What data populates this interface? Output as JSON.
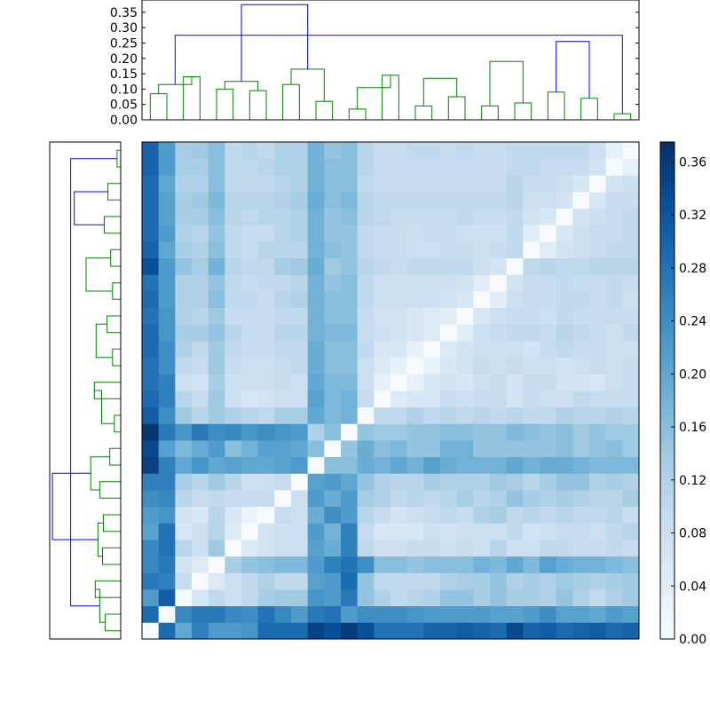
{
  "chart_data": [
    {
      "type": "dendrogram",
      "orientation": "top",
      "title": "",
      "ylabel": "",
      "ylim": [
        0,
        0.39
      ],
      "yticks": [
        0.0,
        0.05,
        0.1,
        0.15,
        0.2,
        0.25,
        0.3,
        0.35
      ],
      "ytick_labels": [
        "0.00",
        "0.05",
        "0.10",
        "0.15",
        "0.20",
        "0.25",
        "0.30",
        "0.35"
      ],
      "leaf_count": 30,
      "colors": {
        "above_threshold": "#0000ff",
        "clusters": "#008000"
      },
      "merges": [
        {
          "left": [
            1
          ],
          "right": [
            2
          ],
          "height": 0.085
        },
        {
          "left": [
            3
          ],
          "right": [
            4
          ],
          "height": 0.14
        },
        {
          "left": [
            5
          ],
          "right": [
            6
          ],
          "height": 0.1
        },
        {
          "left": [
            7
          ],
          "right": [
            8
          ],
          "height": 0.095
        },
        {
          "left": [
            9
          ],
          "right": [
            10
          ],
          "height": 0.115
        },
        {
          "left": [
            11
          ],
          "right": [
            12
          ],
          "height": 0.06
        },
        {
          "left": [
            13
          ],
          "right": [
            14
          ],
          "height": 0.035
        },
        {
          "left": [
            15
          ],
          "right": [
            16
          ],
          "height": 0.145
        },
        {
          "left": [
            17
          ],
          "right": [
            18
          ],
          "height": 0.045
        },
        {
          "left": [
            19
          ],
          "right": [
            20
          ],
          "height": 0.075
        },
        {
          "left": [
            21
          ],
          "right": [
            22
          ],
          "height": 0.045
        },
        {
          "left": [
            23
          ],
          "right": [
            24
          ],
          "height": 0.055
        },
        {
          "left": [
            25
          ],
          "right": [
            26
          ],
          "height": 0.09
        },
        {
          "left": [
            27
          ],
          "right": [
            28
          ],
          "height": 0.07
        },
        {
          "left": [
            29
          ],
          "right": [
            30
          ],
          "height": 0.02
        },
        {
          "left": [
            31
          ],
          "right": [
            32
          ],
          "height": 0.115
        },
        {
          "left": [
            33
          ],
          "right": [
            34
          ],
          "height": 0.125
        },
        {
          "left": [
            35
          ],
          "right": [
            36
          ],
          "height": 0.165
        },
        {
          "left": [
            37
          ],
          "right": [
            38
          ],
          "height": 0.105
        },
        {
          "left": [
            39
          ],
          "right": [
            40
          ],
          "height": 0.135
        },
        {
          "left": [
            41
          ],
          "right": [
            42
          ],
          "height": 0.19
        },
        {
          "left": [
            43
          ],
          "right": [
            44
          ],
          "height": 0.255
        },
        {
          "left": [
            45
          ],
          "right": [
            46
          ],
          "height": 0.275
        },
        {
          "left": [
            47
          ],
          "right": [
            48
          ],
          "height": 0.375
        }
      ]
    },
    {
      "type": "dendrogram",
      "orientation": "left",
      "title": "",
      "leaf_count": 30,
      "colors": {
        "above_threshold": "#0000ff",
        "clusters": "#008000"
      }
    },
    {
      "type": "heatmap",
      "title": "",
      "xlabel": "",
      "ylabel": "",
      "rows": 30,
      "cols": 30,
      "colormap": "Blues",
      "vmin": 0.0,
      "vmax": 0.375,
      "values": [
        [
          0.0,
          0.29,
          0.2,
          0.26,
          0.22,
          0.22,
          0.23,
          0.29,
          0.29,
          0.29,
          0.35,
          0.33,
          0.36,
          0.33,
          0.28,
          0.28,
          0.28,
          0.3,
          0.3,
          0.31,
          0.3,
          0.29,
          0.34,
          0.3,
          0.31,
          0.29,
          0.3,
          0.31,
          0.29,
          0.3
        ],
        [
          0.29,
          0.0,
          0.25,
          0.27,
          0.27,
          0.25,
          0.24,
          0.28,
          0.25,
          0.22,
          0.27,
          0.28,
          0.22,
          0.24,
          0.24,
          0.24,
          0.23,
          0.22,
          0.22,
          0.22,
          0.22,
          0.21,
          0.21,
          0.22,
          0.24,
          0.21,
          0.21,
          0.2,
          0.22,
          0.21
        ],
        [
          0.22,
          0.31,
          0.0,
          0.06,
          0.1,
          0.08,
          0.1,
          0.13,
          0.14,
          0.14,
          0.23,
          0.22,
          0.27,
          0.15,
          0.12,
          0.1,
          0.11,
          0.12,
          0.15,
          0.15,
          0.13,
          0.15,
          0.13,
          0.13,
          0.12,
          0.15,
          0.12,
          0.1,
          0.12,
          0.14
        ],
        [
          0.27,
          0.26,
          0.09,
          0.0,
          0.05,
          0.08,
          0.1,
          0.12,
          0.1,
          0.1,
          0.21,
          0.22,
          0.29,
          0.15,
          0.1,
          0.1,
          0.1,
          0.1,
          0.12,
          0.13,
          0.13,
          0.15,
          0.12,
          0.13,
          0.12,
          0.14,
          0.13,
          0.12,
          0.13,
          0.14
        ],
        [
          0.25,
          0.27,
          0.07,
          0.05,
          0.0,
          0.13,
          0.15,
          0.16,
          0.17,
          0.17,
          0.22,
          0.26,
          0.28,
          0.24,
          0.16,
          0.16,
          0.15,
          0.16,
          0.16,
          0.16,
          0.18,
          0.17,
          0.2,
          0.17,
          0.21,
          0.19,
          0.18,
          0.18,
          0.17,
          0.16
        ],
        [
          0.25,
          0.28,
          0.11,
          0.08,
          0.14,
          0.0,
          0.05,
          0.07,
          0.08,
          0.08,
          0.21,
          0.19,
          0.26,
          0.1,
          0.08,
          0.08,
          0.09,
          0.09,
          0.08,
          0.09,
          0.08,
          0.11,
          0.08,
          0.08,
          0.1,
          0.1,
          0.09,
          0.09,
          0.1,
          0.09
        ],
        [
          0.21,
          0.28,
          0.06,
          0.08,
          0.11,
          0.05,
          0.0,
          0.07,
          0.08,
          0.08,
          0.22,
          0.18,
          0.26,
          0.09,
          0.06,
          0.06,
          0.06,
          0.08,
          0.07,
          0.08,
          0.08,
          0.08,
          0.1,
          0.07,
          0.08,
          0.09,
          0.09,
          0.08,
          0.1,
          0.11
        ],
        [
          0.22,
          0.23,
          0.07,
          0.06,
          0.11,
          0.06,
          0.02,
          0.0,
          0.09,
          0.08,
          0.19,
          0.24,
          0.22,
          0.11,
          0.09,
          0.07,
          0.08,
          0.09,
          0.1,
          0.09,
          0.12,
          0.13,
          0.1,
          0.11,
          0.1,
          0.11,
          0.1,
          0.1,
          0.11,
          0.09
        ],
        [
          0.24,
          0.25,
          0.11,
          0.09,
          0.1,
          0.09,
          0.09,
          0.09,
          0.0,
          0.08,
          0.22,
          0.19,
          0.22,
          0.13,
          0.12,
          0.1,
          0.11,
          0.1,
          0.11,
          0.13,
          0.11,
          0.12,
          0.15,
          0.13,
          0.12,
          0.13,
          0.12,
          0.11,
          0.11,
          0.13
        ],
        [
          0.26,
          0.26,
          0.13,
          0.11,
          0.14,
          0.11,
          0.08,
          0.08,
          0.09,
          0.0,
          0.21,
          0.22,
          0.2,
          0.15,
          0.12,
          0.11,
          0.11,
          0.13,
          0.12,
          0.12,
          0.12,
          0.14,
          0.13,
          0.11,
          0.13,
          0.15,
          0.15,
          0.12,
          0.13,
          0.12
        ],
        [
          0.35,
          0.26,
          0.2,
          0.23,
          0.2,
          0.21,
          0.2,
          0.2,
          0.21,
          0.22,
          0.0,
          0.16,
          0.16,
          0.19,
          0.18,
          0.2,
          0.18,
          0.21,
          0.19,
          0.18,
          0.18,
          0.18,
          0.2,
          0.18,
          0.19,
          0.19,
          0.18,
          0.17,
          0.17,
          0.17
        ],
        [
          0.34,
          0.21,
          0.17,
          0.19,
          0.22,
          0.16,
          0.18,
          0.21,
          0.21,
          0.2,
          0.16,
          0.0,
          0.15,
          0.19,
          0.16,
          0.17,
          0.15,
          0.15,
          0.18,
          0.18,
          0.15,
          0.15,
          0.15,
          0.15,
          0.15,
          0.16,
          0.14,
          0.15,
          0.16,
          0.14
        ],
        [
          0.37,
          0.27,
          0.23,
          0.27,
          0.24,
          0.25,
          0.23,
          0.24,
          0.23,
          0.22,
          0.12,
          0.16,
          0.0,
          0.15,
          0.14,
          0.14,
          0.15,
          0.15,
          0.16,
          0.16,
          0.15,
          0.15,
          0.17,
          0.16,
          0.15,
          0.16,
          0.14,
          0.15,
          0.14,
          0.14
        ],
        [
          0.31,
          0.24,
          0.14,
          0.11,
          0.14,
          0.12,
          0.11,
          0.1,
          0.13,
          0.13,
          0.2,
          0.17,
          0.18,
          0.0,
          0.1,
          0.1,
          0.12,
          0.1,
          0.11,
          0.1,
          0.11,
          0.1,
          0.11,
          0.1,
          0.1,
          0.12,
          0.11,
          0.11,
          0.12,
          0.11
        ],
        [
          0.29,
          0.26,
          0.11,
          0.09,
          0.14,
          0.08,
          0.06,
          0.07,
          0.08,
          0.08,
          0.21,
          0.17,
          0.18,
          0.09,
          0.0,
          0.05,
          0.06,
          0.06,
          0.09,
          0.08,
          0.09,
          0.09,
          0.07,
          0.09,
          0.08,
          0.08,
          0.1,
          0.09,
          0.09,
          0.09
        ],
        [
          0.28,
          0.26,
          0.08,
          0.07,
          0.13,
          0.08,
          0.08,
          0.08,
          0.09,
          0.08,
          0.2,
          0.17,
          0.17,
          0.08,
          0.03,
          0.0,
          0.03,
          0.06,
          0.07,
          0.06,
          0.08,
          0.09,
          0.07,
          0.09,
          0.09,
          0.07,
          0.07,
          0.06,
          0.08,
          0.09
        ],
        [
          0.28,
          0.24,
          0.1,
          0.09,
          0.14,
          0.09,
          0.08,
          0.08,
          0.09,
          0.1,
          0.19,
          0.16,
          0.16,
          0.08,
          0.05,
          0.03,
          0.0,
          0.03,
          0.06,
          0.07,
          0.09,
          0.08,
          0.09,
          0.08,
          0.08,
          0.07,
          0.08,
          0.09,
          0.08,
          0.09
        ],
        [
          0.29,
          0.24,
          0.12,
          0.1,
          0.14,
          0.1,
          0.09,
          0.09,
          0.1,
          0.1,
          0.19,
          0.16,
          0.16,
          0.1,
          0.06,
          0.06,
          0.03,
          0.0,
          0.05,
          0.07,
          0.08,
          0.08,
          0.08,
          0.07,
          0.09,
          0.1,
          0.09,
          0.09,
          0.08,
          0.08
        ],
        [
          0.29,
          0.23,
          0.13,
          0.13,
          0.15,
          0.11,
          0.09,
          0.09,
          0.11,
          0.11,
          0.18,
          0.17,
          0.17,
          0.09,
          0.08,
          0.07,
          0.06,
          0.05,
          0.0,
          0.04,
          0.08,
          0.09,
          0.1,
          0.1,
          0.09,
          0.11,
          0.1,
          0.09,
          0.08,
          0.1
        ],
        [
          0.28,
          0.23,
          0.12,
          0.11,
          0.14,
          0.09,
          0.09,
          0.09,
          0.1,
          0.1,
          0.18,
          0.16,
          0.16,
          0.09,
          0.07,
          0.07,
          0.06,
          0.05,
          0.04,
          0.0,
          0.06,
          0.08,
          0.09,
          0.09,
          0.08,
          0.1,
          0.09,
          0.09,
          0.09,
          0.09
        ],
        [
          0.29,
          0.22,
          0.12,
          0.12,
          0.16,
          0.1,
          0.1,
          0.09,
          0.11,
          0.12,
          0.18,
          0.16,
          0.16,
          0.1,
          0.08,
          0.08,
          0.08,
          0.08,
          0.07,
          0.06,
          0.0,
          0.04,
          0.08,
          0.09,
          0.09,
          0.1,
          0.1,
          0.09,
          0.1,
          0.08
        ],
        [
          0.28,
          0.22,
          0.12,
          0.12,
          0.15,
          0.1,
          0.09,
          0.1,
          0.1,
          0.11,
          0.18,
          0.15,
          0.16,
          0.1,
          0.08,
          0.08,
          0.08,
          0.08,
          0.08,
          0.07,
          0.04,
          0.0,
          0.07,
          0.09,
          0.09,
          0.1,
          0.09,
          0.09,
          0.1,
          0.09
        ],
        [
          0.33,
          0.22,
          0.15,
          0.13,
          0.18,
          0.11,
          0.1,
          0.1,
          0.13,
          0.14,
          0.19,
          0.14,
          0.15,
          0.11,
          0.1,
          0.09,
          0.1,
          0.1,
          0.1,
          0.1,
          0.08,
          0.07,
          0.0,
          0.1,
          0.11,
          0.1,
          0.1,
          0.11,
          0.11,
          0.11
        ],
        [
          0.3,
          0.2,
          0.13,
          0.12,
          0.16,
          0.1,
          0.09,
          0.11,
          0.11,
          0.11,
          0.18,
          0.16,
          0.15,
          0.1,
          0.09,
          0.09,
          0.08,
          0.08,
          0.09,
          0.09,
          0.08,
          0.09,
          0.1,
          0.0,
          0.04,
          0.07,
          0.08,
          0.09,
          0.1,
          0.1
        ],
        [
          0.29,
          0.22,
          0.12,
          0.11,
          0.15,
          0.1,
          0.09,
          0.09,
          0.11,
          0.12,
          0.18,
          0.15,
          0.15,
          0.1,
          0.09,
          0.09,
          0.08,
          0.09,
          0.09,
          0.08,
          0.08,
          0.08,
          0.1,
          0.04,
          0.0,
          0.06,
          0.08,
          0.09,
          0.09,
          0.1
        ],
        [
          0.29,
          0.21,
          0.13,
          0.13,
          0.16,
          0.11,
          0.1,
          0.11,
          0.11,
          0.12,
          0.18,
          0.15,
          0.16,
          0.11,
          0.1,
          0.09,
          0.09,
          0.09,
          0.09,
          0.1,
          0.09,
          0.09,
          0.1,
          0.07,
          0.06,
          0.0,
          0.07,
          0.08,
          0.09,
          0.1
        ],
        [
          0.29,
          0.21,
          0.13,
          0.14,
          0.17,
          0.11,
          0.11,
          0.11,
          0.12,
          0.13,
          0.19,
          0.16,
          0.17,
          0.11,
          0.1,
          0.1,
          0.1,
          0.1,
          0.1,
          0.1,
          0.1,
          0.1,
          0.11,
          0.08,
          0.08,
          0.07,
          0.0,
          0.06,
          0.09,
          0.09
        ],
        [
          0.29,
          0.2,
          0.12,
          0.12,
          0.16,
          0.1,
          0.1,
          0.1,
          0.11,
          0.12,
          0.18,
          0.16,
          0.16,
          0.1,
          0.09,
          0.09,
          0.09,
          0.09,
          0.09,
          0.09,
          0.09,
          0.09,
          0.11,
          0.09,
          0.09,
          0.08,
          0.06,
          0.0,
          0.07,
          0.08
        ],
        [
          0.3,
          0.22,
          0.13,
          0.13,
          0.16,
          0.1,
          0.1,
          0.11,
          0.12,
          0.12,
          0.18,
          0.16,
          0.16,
          0.11,
          0.09,
          0.09,
          0.09,
          0.09,
          0.09,
          0.09,
          0.09,
          0.09,
          0.1,
          0.1,
          0.09,
          0.09,
          0.09,
          0.07,
          0.0,
          0.03
        ],
        [
          0.3,
          0.22,
          0.13,
          0.14,
          0.16,
          0.1,
          0.11,
          0.1,
          0.12,
          0.12,
          0.18,
          0.15,
          0.16,
          0.11,
          0.09,
          0.09,
          0.1,
          0.1,
          0.09,
          0.1,
          0.09,
          0.09,
          0.1,
          0.1,
          0.1,
          0.1,
          0.1,
          0.08,
          0.03,
          0.0
        ]
      ]
    },
    {
      "type": "colorbar",
      "colormap": "Blues",
      "ylim": [
        0,
        0.375
      ],
      "ticks": [
        0.0,
        0.04,
        0.08,
        0.12,
        0.16,
        0.2,
        0.24,
        0.28,
        0.32,
        0.36
      ],
      "tick_labels": [
        "0.00",
        "0.04",
        "0.08",
        "0.12",
        "0.16",
        "0.20",
        "0.24",
        "0.28",
        "0.32",
        "0.36"
      ]
    }
  ]
}
